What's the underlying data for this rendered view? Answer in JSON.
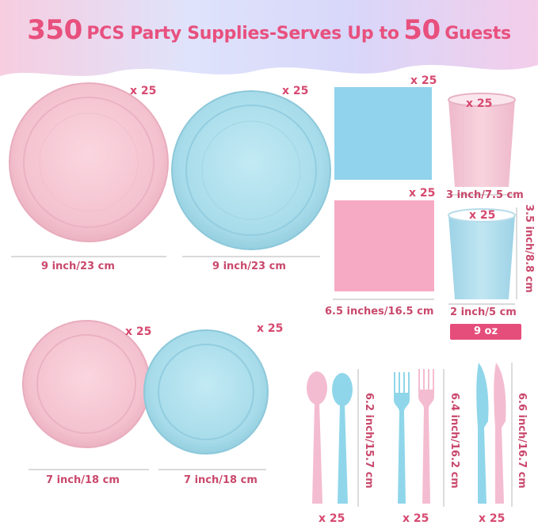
{
  "title": {
    "count": "350",
    "pcs": "PCS Party Supplies-Serves Up to",
    "guests_count": "50",
    "guests": "Guests"
  },
  "colors": {
    "pink": "#f6c6d2",
    "blue": "#a9dcea",
    "accent": "#e8507e"
  },
  "items": {
    "large_pink_plate": {
      "qty": "x 25",
      "size": "9 inch/23 cm"
    },
    "large_blue_plate": {
      "qty": "x 25",
      "size": "9 inch/23 cm"
    },
    "blue_napkin": {
      "qty": "x 25"
    },
    "pink_napkin": {
      "qty": "x 25",
      "size": "6.5 inches/16.5 cm"
    },
    "pink_cup": {
      "qty": "x 25",
      "size": "3 inch/7.5 cm"
    },
    "blue_cup": {
      "qty": "x 25",
      "width": "2 inch/5 cm",
      "height": "3.5 inch/8.8 cm"
    },
    "cup_volume": "9 oz",
    "small_pink_plate": {
      "qty": "x 25",
      "size": "7 inch/18 cm"
    },
    "small_blue_plate": {
      "qty": "x 25",
      "size": "7 inch/18 cm"
    },
    "spoons": {
      "qty": "x 25",
      "size": "6.2 inch/15.7 cm"
    },
    "forks": {
      "qty": "x 25",
      "size": "6.4 inch/16.2 cm"
    },
    "knives": {
      "qty": "x 25",
      "size": "6.6 inch/16.7 cm"
    }
  }
}
